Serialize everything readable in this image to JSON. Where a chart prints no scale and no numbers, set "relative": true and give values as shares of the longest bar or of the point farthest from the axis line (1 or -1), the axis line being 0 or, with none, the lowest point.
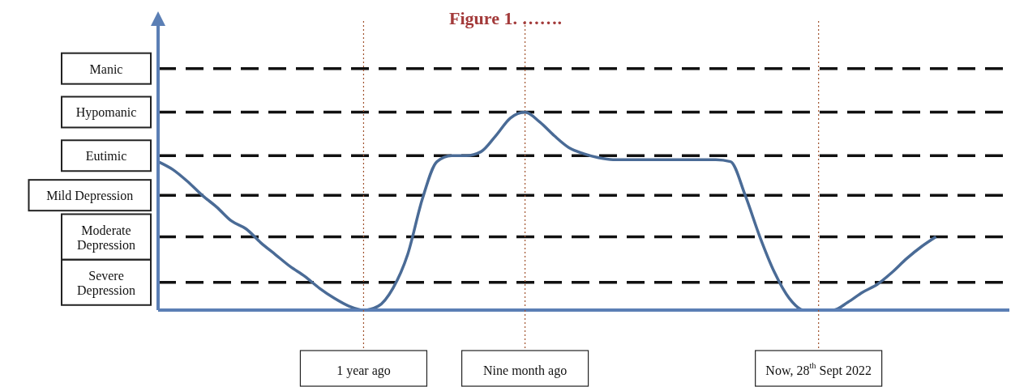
{
  "chart_data": {
    "type": "line",
    "title": "Figure 1. …….",
    "relative": true,
    "categories": [
      null,
      null,
      null,
      null,
      null,
      null,
      null,
      null,
      null,
      null,
      null,
      null,
      null,
      null,
      "1 year ago",
      null,
      null,
      null,
      null,
      null,
      null,
      null,
      null,
      null,
      null,
      "Nine month ago",
      null,
      null,
      null,
      null,
      null,
      null,
      null,
      null,
      null,
      null,
      null,
      null,
      null,
      null,
      null,
      null,
      null,
      null,
      null,
      "Now, 28$^{th}$ Sept 2022",
      null,
      null,
      null,
      null,
      null,
      null,
      null,
      null,
      null,
      null,
      null,
      null,
      null
    ],
    "series": [
      {
        "color": "#4a6b96",
        "values": [
          0.75,
          0.71,
          0.65,
          0.58,
          0.52,
          0.45,
          0.41,
          0.34,
          0.28,
          0.22,
          0.17,
          0.11,
          0.06,
          0.02,
          0,
          0.02,
          0.11,
          0.28,
          0.56,
          0.75,
          0.78,
          0.78,
          0.8,
          0.88,
          0.97,
          1,
          0.95,
          0.88,
          0.82,
          0.79,
          0.77,
          0.76,
          0.76,
          0.76,
          0.76,
          0.76,
          0.76,
          0.76,
          0.76,
          0.75,
          0.58,
          0.37,
          0.19,
          0.06,
          0,
          0,
          0,
          0.04,
          0.09,
          0.13,
          0.19,
          0.26,
          0.32,
          0.37,
          null,
          null,
          null,
          null,
          null
        ]
      }
    ],
    "line_style": "solid",
    "marker": "none",
    "ref_lines": [
      {
        "axis": "y",
        "value": 0.14,
        "label": "Severe Depression",
        "color": "#111111",
        "line_style": "dashed"
      },
      {
        "axis": "y",
        "value": 0.37,
        "label": "Moderate Depression",
        "color": "#111111",
        "line_style": "dashed"
      },
      {
        "axis": "y",
        "value": 0.58,
        "label": "Mild Depression",
        "color": "#111111",
        "line_style": "dashed"
      },
      {
        "axis": "y",
        "value": 0.78,
        "label": "Eutimic",
        "color": "#111111",
        "line_style": "dashed"
      },
      {
        "axis": "y",
        "value": 1,
        "label": "Hypomanic",
        "color": "#111111",
        "line_style": "dashed"
      },
      {
        "axis": "y",
        "value": 1.22,
        "label": "Manic",
        "color": "#111111",
        "line_style": "dashed"
      },
      {
        "axis": "x",
        "value": "1 year ago",
        "color": "#a0522d",
        "line_style": "dotted"
      },
      {
        "axis": "x",
        "value": "Nine month ago",
        "color": "#a0522d",
        "line_style": "dotted"
      },
      {
        "axis": "x",
        "value": "Now, 28$^{th}$ Sept 2022",
        "color": "#a0522d",
        "line_style": "dotted"
      }
    ]
  }
}
